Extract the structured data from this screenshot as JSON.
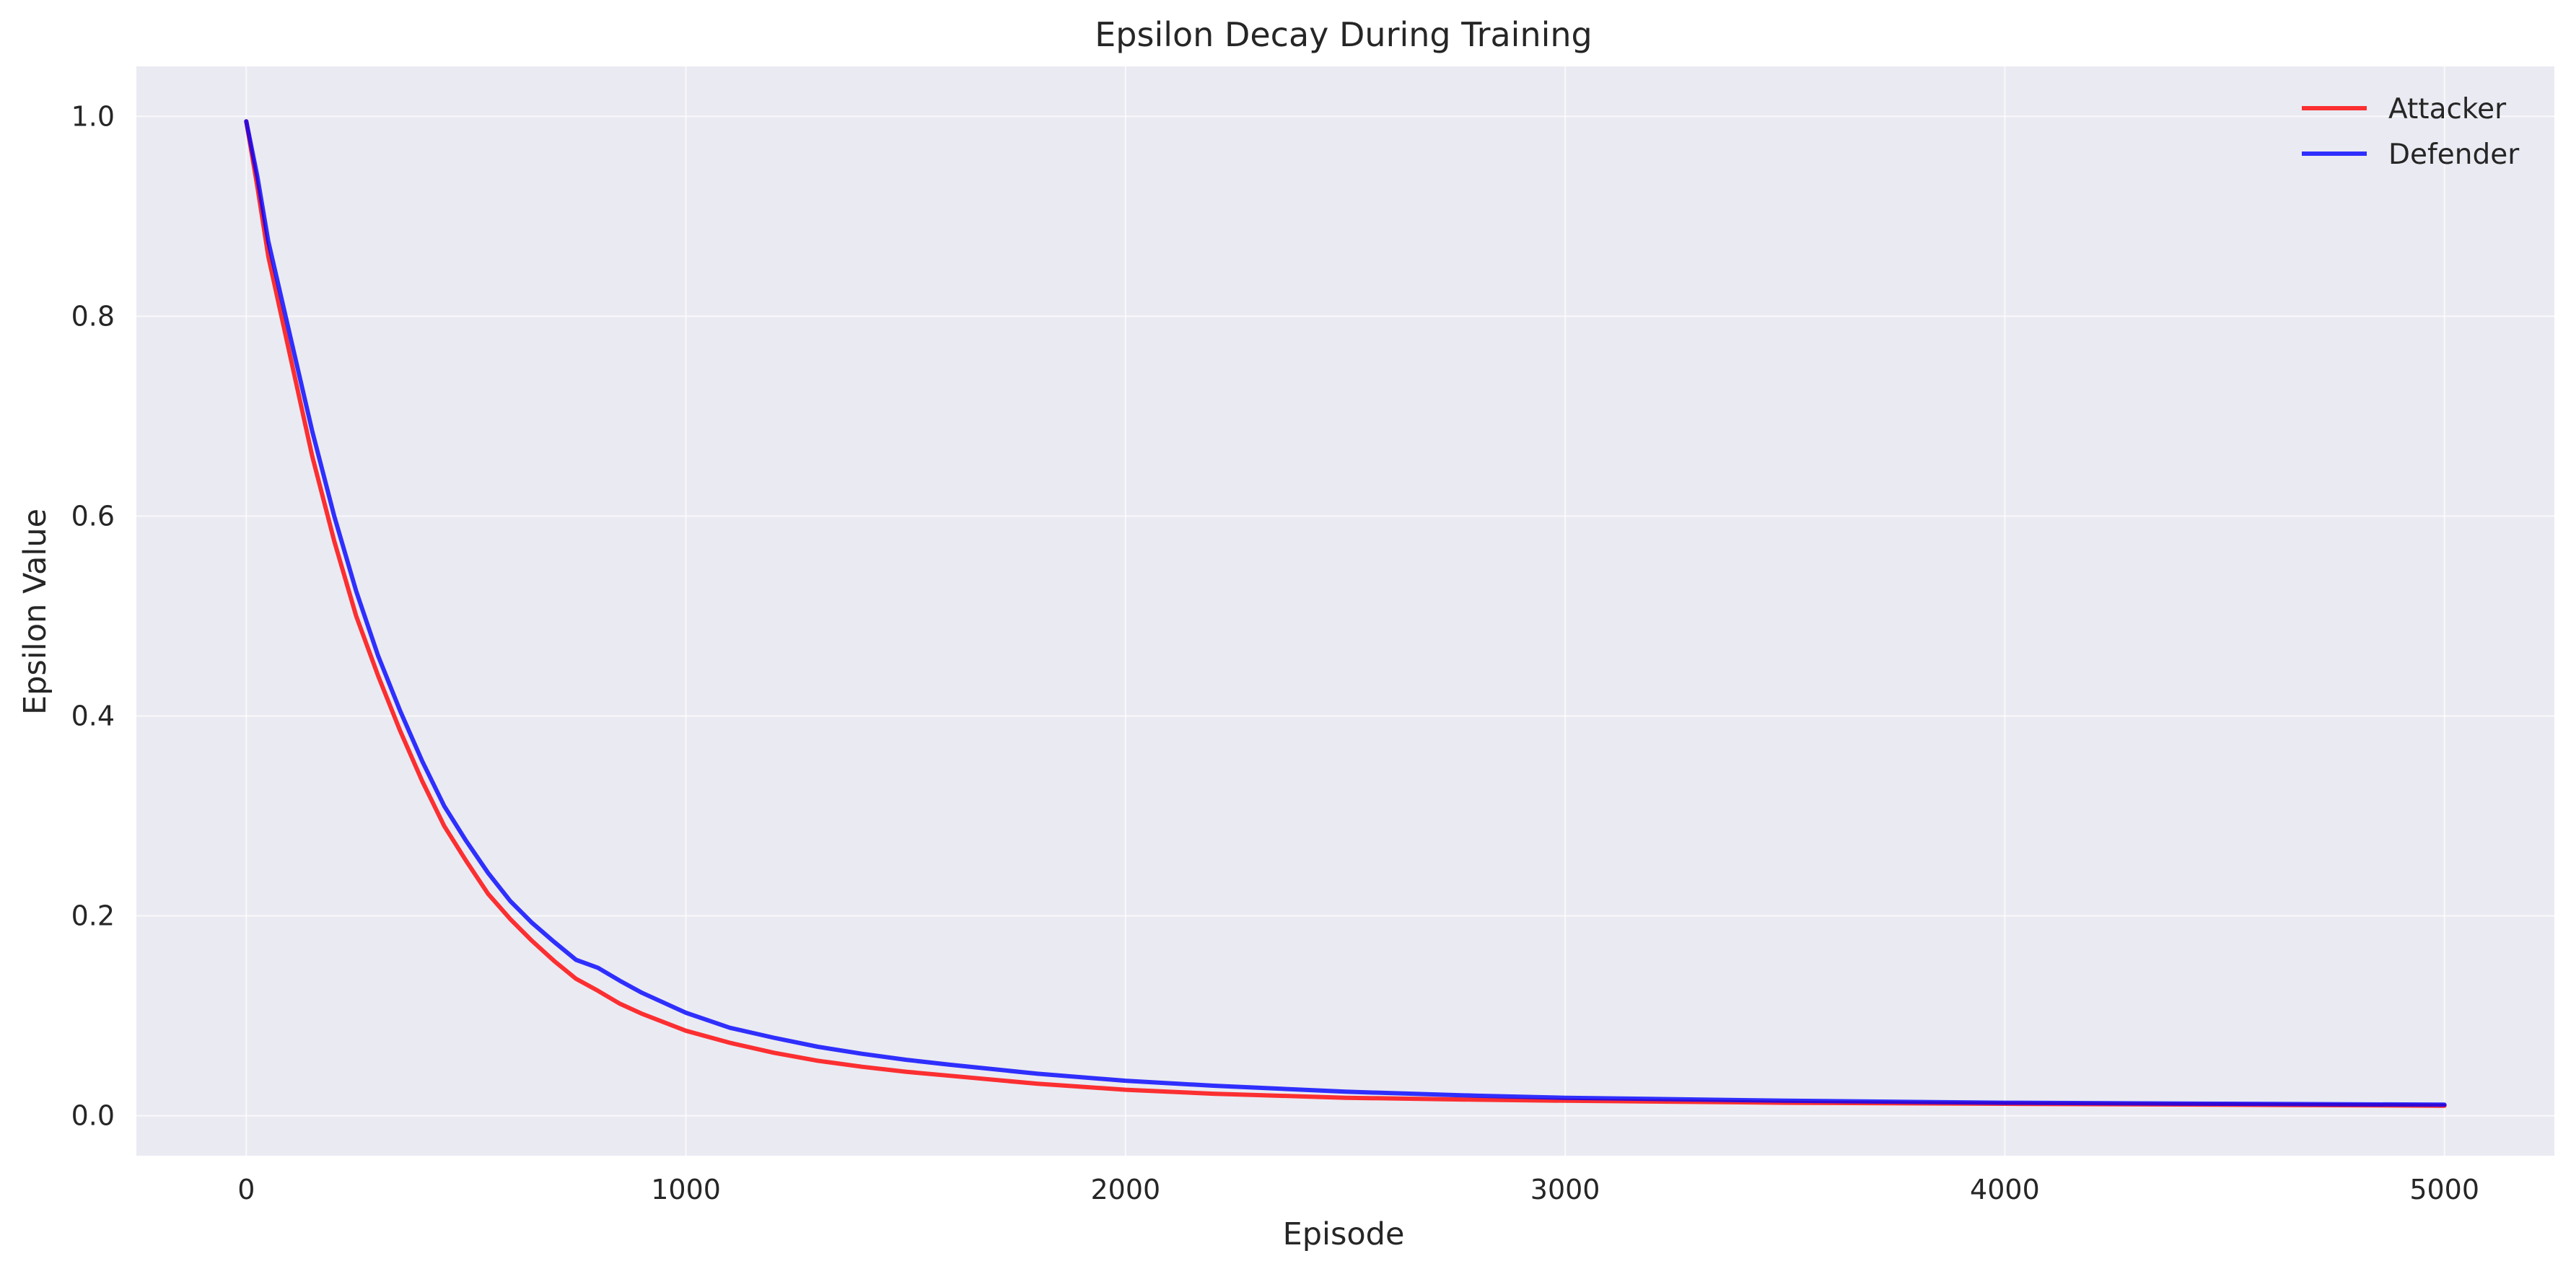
{
  "chart_data": {
    "type": "line",
    "title": "Epsilon Decay During Training",
    "xlabel": "Episode",
    "ylabel": "Epsilon Value",
    "xlim": [
      -250,
      5250
    ],
    "ylim": [
      -0.04,
      1.05
    ],
    "xticks": [
      0,
      1000,
      2000,
      3000,
      4000,
      5000
    ],
    "xtick_labels": [
      "0",
      "1000",
      "2000",
      "3000",
      "4000",
      "5000"
    ],
    "yticks": [
      0.0,
      0.2,
      0.4,
      0.6,
      0.8,
      1.0
    ],
    "ytick_labels": [
      "0.0",
      "0.2",
      "0.4",
      "0.6",
      "0.8",
      "1.0"
    ],
    "grid": true,
    "legend_position": "top-right",
    "series": [
      {
        "name": "Attacker",
        "color": "#ff0000",
        "x": [
          0,
          25,
          50,
          100,
          150,
          200,
          250,
          300,
          350,
          400,
          450,
          500,
          550,
          600,
          650,
          700,
          750,
          800,
          850,
          900,
          1000,
          1100,
          1200,
          1300,
          1400,
          1500,
          1600,
          1800,
          2000,
          2200,
          2500,
          2800,
          3000,
          3500,
          4000,
          4500,
          5000
        ],
        "y": [
          0.995,
          0.93,
          0.86,
          0.76,
          0.66,
          0.575,
          0.5,
          0.44,
          0.385,
          0.335,
          0.29,
          0.255,
          0.222,
          0.197,
          0.175,
          0.155,
          0.137,
          0.125,
          0.112,
          0.102,
          0.085,
          0.073,
          0.063,
          0.055,
          0.049,
          0.044,
          0.04,
          0.032,
          0.026,
          0.022,
          0.018,
          0.016,
          0.015,
          0.013,
          0.012,
          0.011,
          0.01
        ]
      },
      {
        "name": "Defender",
        "color": "#0000ff",
        "x": [
          0,
          25,
          50,
          100,
          150,
          200,
          250,
          300,
          350,
          400,
          450,
          500,
          550,
          600,
          650,
          700,
          750,
          800,
          850,
          900,
          1000,
          1100,
          1200,
          1300,
          1400,
          1500,
          1600,
          1800,
          2000,
          2200,
          2500,
          2800,
          3000,
          3500,
          4000,
          4500,
          5000
        ],
        "y": [
          0.995,
          0.94,
          0.875,
          0.78,
          0.685,
          0.6,
          0.525,
          0.46,
          0.405,
          0.355,
          0.31,
          0.275,
          0.243,
          0.215,
          0.193,
          0.174,
          0.156,
          0.148,
          0.135,
          0.123,
          0.103,
          0.088,
          0.078,
          0.069,
          0.062,
          0.056,
          0.051,
          0.042,
          0.035,
          0.03,
          0.024,
          0.02,
          0.018,
          0.015,
          0.013,
          0.012,
          0.011
        ]
      }
    ]
  }
}
